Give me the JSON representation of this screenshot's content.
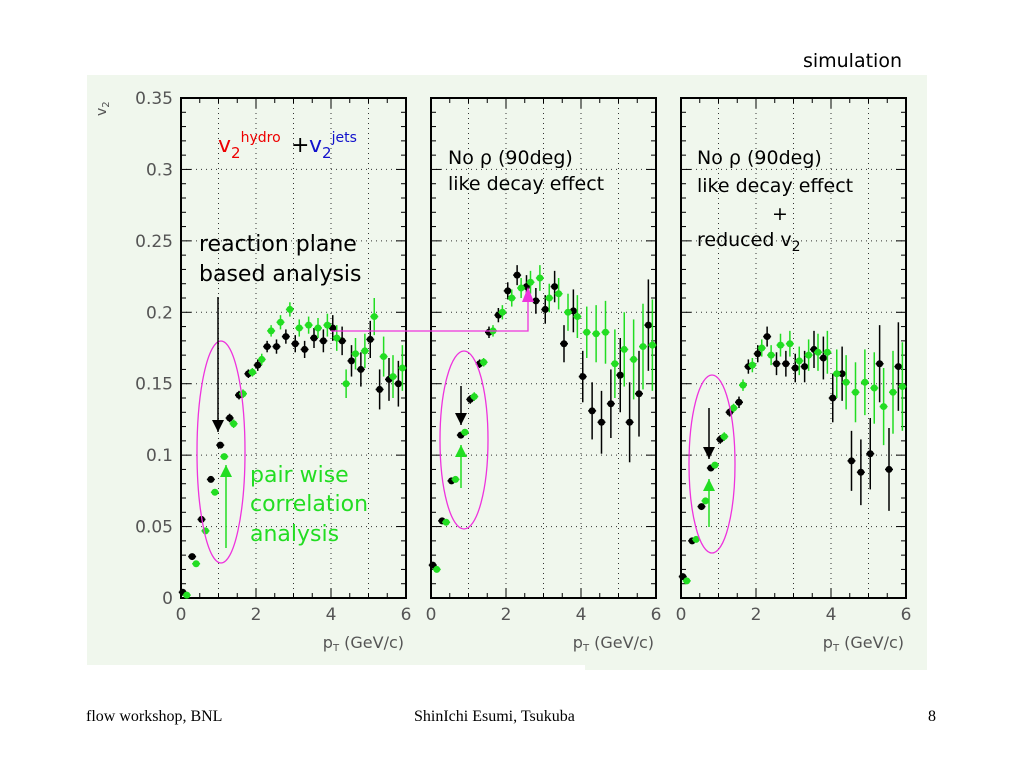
{
  "corner_label": "simulation",
  "footer": {
    "left": "flow workshop, BNL",
    "center": "ShinIchi Esumi, Tsukuba",
    "page": "8"
  },
  "colors": {
    "black_series": "#000000",
    "green_series": "#22dd22",
    "ellipse": "#ee33dd",
    "hydro_text": "#ee0000",
    "jets_text": "#1111cc",
    "pair_wise_text": "#22dd22",
    "panel_background": "#f0f7ed"
  },
  "annotations": {
    "v2_hydro_base": "v",
    "v2_hydro_sub": "2",
    "v2_hydro_sup": "hydro",
    "plus": "+",
    "v2_jets_base": "v",
    "v2_jets_sub": "2",
    "v2_jets_sup": "jets",
    "reaction_plane_1": "reaction plane",
    "reaction_plane_2": "based analysis",
    "pair_wise_1": "pair wise",
    "pair_wise_2": "correlation",
    "pair_wise_3": "analysis",
    "no_rho_2_line1": "No ρ (90deg)",
    "no_rho_2_line2": "like decay effect",
    "no_rho_3_line1": "No ρ (90deg)",
    "no_rho_3_line2": "like decay effect",
    "no_rho_3_line3": "+",
    "no_rho_3_line4_base": "reduced v",
    "no_rho_3_line4_sub": "2"
  },
  "chart_data": [
    {
      "type": "scatter",
      "panel": 1,
      "ylabel": "v2",
      "xlabel": "pT (GeV/c)",
      "xlim": [
        0,
        6
      ],
      "ylim": [
        0,
        0.35
      ],
      "x_ticks": [
        "0",
        "2",
        "4",
        "6"
      ],
      "y_ticks": [
        "0",
        "0.05",
        "0.1",
        "0.15",
        "0.2",
        "0.25",
        "0.3",
        "0.35"
      ],
      "grid": true,
      "series": [
        {
          "color": "black",
          "points": [
            [
              0.1,
              0.004,
              0.002
            ],
            [
              0.35,
              0.029,
              0.002
            ],
            [
              0.6,
              0.055,
              0.002
            ],
            [
              0.85,
              0.083,
              0.002
            ],
            [
              1.1,
              0.107,
              0.002
            ],
            [
              1.35,
              0.126,
              0.003
            ],
            [
              1.6,
              0.142,
              0.003
            ],
            [
              1.85,
              0.157,
              0.003
            ],
            [
              2.1,
              0.163,
              0.004
            ],
            [
              2.35,
              0.176,
              0.004
            ],
            [
              2.6,
              0.176,
              0.005
            ],
            [
              2.85,
              0.183,
              0.005
            ],
            [
              3.1,
              0.178,
              0.006
            ],
            [
              3.35,
              0.174,
              0.006
            ],
            [
              3.6,
              0.182,
              0.007
            ],
            [
              3.85,
              0.18,
              0.008
            ],
            [
              4.1,
              0.189,
              0.009
            ],
            [
              4.35,
              0.18,
              0.01
            ],
            [
              4.6,
              0.166,
              0.011
            ],
            [
              4.85,
              0.16,
              0.012
            ],
            [
              5.1,
              0.181,
              0.013
            ],
            [
              5.35,
              0.146,
              0.014
            ],
            [
              5.6,
              0.153,
              0.015
            ],
            [
              5.85,
              0.15,
              0.016
            ]
          ]
        },
        {
          "color": "green",
          "points": [
            [
              0.1,
              0.002,
              0.002
            ],
            [
              0.35,
              0.024,
              0.002
            ],
            [
              0.6,
              0.047,
              0.002
            ],
            [
              0.85,
              0.074,
              0.002
            ],
            [
              1.1,
              0.099,
              0.002
            ],
            [
              1.35,
              0.122,
              0.003
            ],
            [
              1.6,
              0.143,
              0.003
            ],
            [
              1.85,
              0.158,
              0.003
            ],
            [
              2.1,
              0.167,
              0.004
            ],
            [
              2.35,
              0.187,
              0.004
            ],
            [
              2.6,
              0.193,
              0.005
            ],
            [
              2.85,
              0.202,
              0.005
            ],
            [
              3.1,
              0.189,
              0.006
            ],
            [
              3.35,
              0.191,
              0.006
            ],
            [
              3.6,
              0.189,
              0.007
            ],
            [
              3.85,
              0.191,
              0.008
            ],
            [
              4.1,
              0.182,
              0.009
            ],
            [
              4.35,
              0.15,
              0.01
            ],
            [
              4.6,
              0.171,
              0.011
            ],
            [
              4.85,
              0.173,
              0.012
            ],
            [
              5.1,
              0.197,
              0.013
            ],
            [
              5.35,
              0.169,
              0.014
            ],
            [
              5.6,
              0.155,
              0.015
            ],
            [
              5.85,
              0.161,
              0.016
            ]
          ]
        }
      ]
    },
    {
      "type": "scatter",
      "panel": 2,
      "xlabel": "pT (GeV/c)",
      "xlim": [
        0,
        6
      ],
      "ylim": [
        0,
        0.35
      ],
      "x_ticks": [
        "0",
        "2",
        "4",
        "6"
      ],
      "grid": true,
      "series": [
        {
          "color": "black",
          "points": [
            [
              0.1,
              0.023,
              0.002
            ],
            [
              0.35,
              0.054,
              0.002
            ],
            [
              0.6,
              0.082,
              0.002
            ],
            [
              0.85,
              0.114,
              0.002
            ],
            [
              1.1,
              0.139,
              0.003
            ],
            [
              1.35,
              0.164,
              0.003
            ],
            [
              1.6,
              0.186,
              0.004
            ],
            [
              1.85,
              0.198,
              0.005
            ],
            [
              2.1,
              0.215,
              0.006
            ],
            [
              2.35,
              0.226,
              0.007
            ],
            [
              2.6,
              0.218,
              0.008
            ],
            [
              2.85,
              0.208,
              0.009
            ],
            [
              3.1,
              0.202,
              0.01
            ],
            [
              3.35,
              0.218,
              0.011
            ],
            [
              3.6,
              0.178,
              0.013
            ],
            [
              3.85,
              0.201,
              0.015
            ],
            [
              4.1,
              0.155,
              0.018
            ],
            [
              4.35,
              0.131,
              0.02
            ],
            [
              4.6,
              0.123,
              0.022
            ],
            [
              4.85,
              0.136,
              0.024
            ],
            [
              5.1,
              0.156,
              0.026
            ],
            [
              5.35,
              0.123,
              0.028
            ],
            [
              5.6,
              0.143,
              0.03
            ],
            [
              5.85,
              0.191,
              0.032
            ]
          ]
        },
        {
          "color": "green",
          "points": [
            [
              0.1,
              0.02,
              0.002
            ],
            [
              0.35,
              0.053,
              0.002
            ],
            [
              0.6,
              0.083,
              0.002
            ],
            [
              0.85,
              0.116,
              0.002
            ],
            [
              1.1,
              0.141,
              0.003
            ],
            [
              1.35,
              0.165,
              0.003
            ],
            [
              1.6,
              0.187,
              0.004
            ],
            [
              1.85,
              0.2,
              0.005
            ],
            [
              2.1,
              0.21,
              0.006
            ],
            [
              2.35,
              0.217,
              0.007
            ],
            [
              2.6,
              0.221,
              0.008
            ],
            [
              2.85,
              0.224,
              0.009
            ],
            [
              3.1,
              0.21,
              0.01
            ],
            [
              3.35,
              0.213,
              0.011
            ],
            [
              3.6,
              0.2,
              0.013
            ],
            [
              3.85,
              0.197,
              0.015
            ],
            [
              4.1,
              0.186,
              0.018
            ],
            [
              4.35,
              0.185,
              0.02
            ],
            [
              4.6,
              0.186,
              0.022
            ],
            [
              4.85,
              0.164,
              0.024
            ],
            [
              5.1,
              0.174,
              0.026
            ],
            [
              5.35,
              0.167,
              0.028
            ],
            [
              5.6,
              0.176,
              0.03
            ],
            [
              5.85,
              0.177,
              0.032
            ]
          ]
        }
      ]
    },
    {
      "type": "scatter",
      "panel": 3,
      "xlabel": "pT (GeV/c)",
      "xlim": [
        0,
        6
      ],
      "ylim": [
        0,
        0.35
      ],
      "x_ticks": [
        "0",
        "2",
        "4",
        "6"
      ],
      "grid": true,
      "series": [
        {
          "color": "black",
          "points": [
            [
              0.1,
              0.015,
              0.002
            ],
            [
              0.35,
              0.04,
              0.002
            ],
            [
              0.6,
              0.064,
              0.002
            ],
            [
              0.85,
              0.091,
              0.002
            ],
            [
              1.1,
              0.111,
              0.003
            ],
            [
              1.35,
              0.13,
              0.003
            ],
            [
              1.6,
              0.137,
              0.004
            ],
            [
              1.85,
              0.162,
              0.005
            ],
            [
              2.1,
              0.171,
              0.006
            ],
            [
              2.35,
              0.183,
              0.007
            ],
            [
              2.6,
              0.164,
              0.008
            ],
            [
              2.85,
              0.164,
              0.009
            ],
            [
              3.1,
              0.161,
              0.01
            ],
            [
              3.35,
              0.162,
              0.011
            ],
            [
              3.6,
              0.174,
              0.013
            ],
            [
              3.85,
              0.168,
              0.015
            ],
            [
              4.1,
              0.14,
              0.017
            ],
            [
              4.35,
              0.157,
              0.019
            ],
            [
              4.6,
              0.096,
              0.021
            ],
            [
              4.85,
              0.088,
              0.023
            ],
            [
              5.1,
              0.101,
              0.025
            ],
            [
              5.35,
              0.164,
              0.027
            ],
            [
              5.6,
              0.09,
              0.029
            ],
            [
              5.85,
              0.162,
              0.031
            ]
          ]
        },
        {
          "color": "green",
          "points": [
            [
              0.1,
              0.012,
              0.002
            ],
            [
              0.35,
              0.041,
              0.002
            ],
            [
              0.6,
              0.068,
              0.002
            ],
            [
              0.85,
              0.093,
              0.002
            ],
            [
              1.1,
              0.113,
              0.003
            ],
            [
              1.35,
              0.133,
              0.003
            ],
            [
              1.6,
              0.149,
              0.004
            ],
            [
              1.85,
              0.163,
              0.005
            ],
            [
              2.1,
              0.175,
              0.006
            ],
            [
              2.35,
              0.17,
              0.007
            ],
            [
              2.6,
              0.177,
              0.008
            ],
            [
              2.85,
              0.178,
              0.009
            ],
            [
              3.1,
              0.166,
              0.01
            ],
            [
              3.35,
              0.17,
              0.011
            ],
            [
              3.6,
              0.172,
              0.013
            ],
            [
              3.85,
              0.172,
              0.015
            ],
            [
              4.1,
              0.157,
              0.017
            ],
            [
              4.35,
              0.151,
              0.019
            ],
            [
              4.6,
              0.144,
              0.021
            ],
            [
              4.85,
              0.151,
              0.023
            ],
            [
              5.1,
              0.147,
              0.025
            ],
            [
              5.35,
              0.134,
              0.027
            ],
            [
              5.6,
              0.144,
              0.029
            ],
            [
              5.85,
              0.148,
              0.031
            ]
          ]
        }
      ]
    }
  ]
}
